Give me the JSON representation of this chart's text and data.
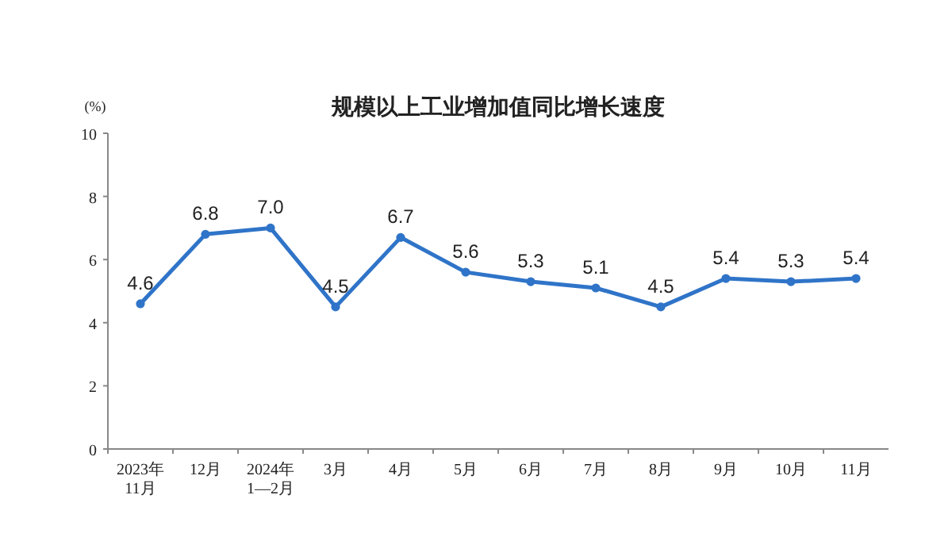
{
  "chart_data": {
    "type": "line",
    "title": "规模以上工业增加值同比增长速度",
    "ylabel": "(%)",
    "categories": [
      "2023年\n11月",
      "12月",
      "2024年\n1—2月",
      "3月",
      "4月",
      "5月",
      "6月",
      "7月",
      "8月",
      "9月",
      "10月",
      "11月"
    ],
    "series": [
      {
        "color": "#2f74c8",
        "values": [
          4.6,
          6.8,
          7.0,
          4.5,
          6.7,
          5.6,
          5.3,
          5.1,
          4.5,
          5.4,
          5.3,
          5.4
        ],
        "value_labels": [
          "4.6",
          "6.8",
          "7.0",
          "4.5",
          "6.7",
          "5.6",
          "5.3",
          "5.1",
          "4.5",
          "5.4",
          "5.3",
          "5.4"
        ]
      }
    ],
    "ylim": [
      0,
      10
    ],
    "yticks": [
      0,
      2,
      4,
      6,
      8,
      10
    ],
    "marker": "circle",
    "line_style": "solid"
  }
}
